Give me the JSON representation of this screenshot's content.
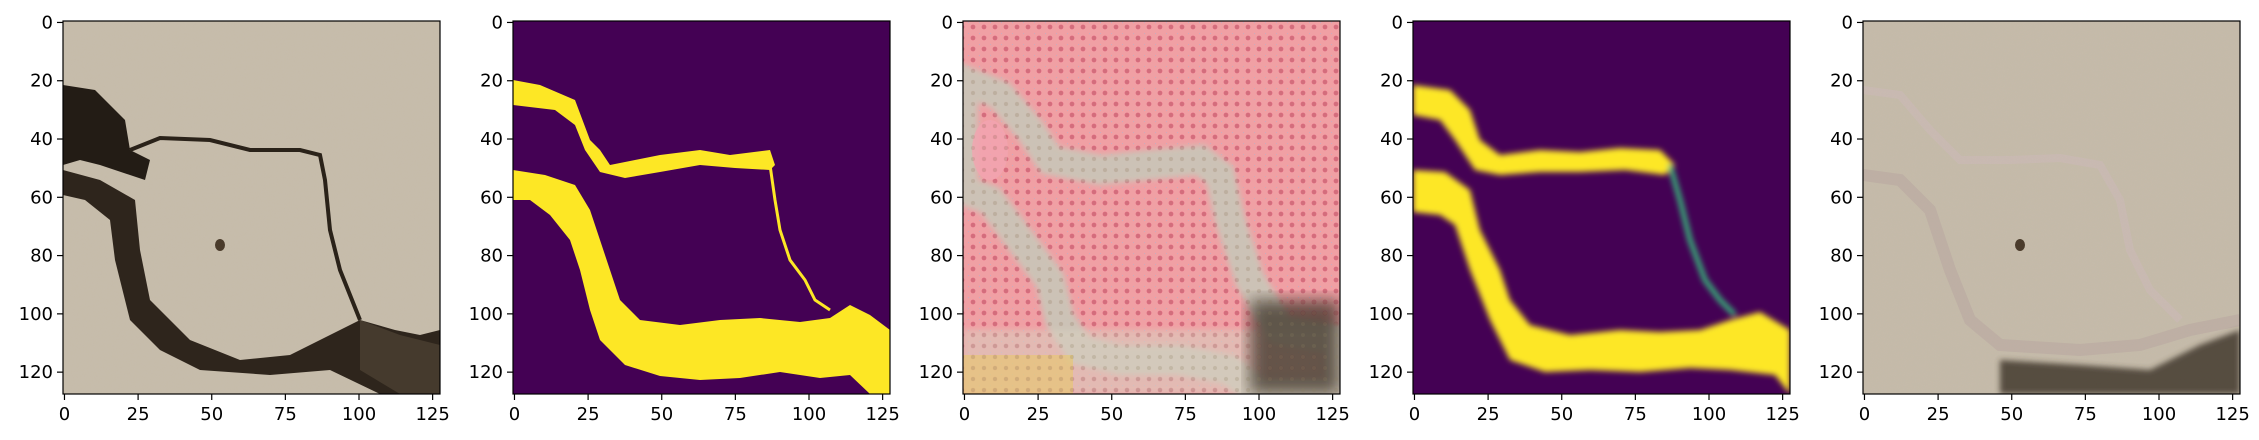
{
  "figure": {
    "panels": [
      {
        "id": "input-photo",
        "content": "cracked concrete photograph"
      },
      {
        "id": "ground-truth-mask",
        "content": "binary crack mask (viridis)"
      },
      {
        "id": "generated-image",
        "content": "generated texture with crack artifacts"
      },
      {
        "id": "predicted-mask",
        "content": "soft predicted crack mask (viridis)"
      },
      {
        "id": "reconstructed-photo",
        "content": "reconstructed concrete photograph"
      }
    ],
    "axes": {
      "x_ticks": [
        "0",
        "25",
        "50",
        "75",
        "100",
        "125"
      ],
      "y_ticks": [
        "0",
        "20",
        "40",
        "60",
        "80",
        "100",
        "120"
      ],
      "xlim": [
        -0.5,
        127.5
      ],
      "ylim": [
        127.5,
        -0.5
      ]
    },
    "colors": {
      "viridis_low": "#440154",
      "viridis_high": "#fde725",
      "concrete": "#c7bcaa",
      "crack_dark": "#2a2219",
      "generated_bg": "#f0a5a5",
      "generated_crack": "#b8b49c"
    }
  }
}
